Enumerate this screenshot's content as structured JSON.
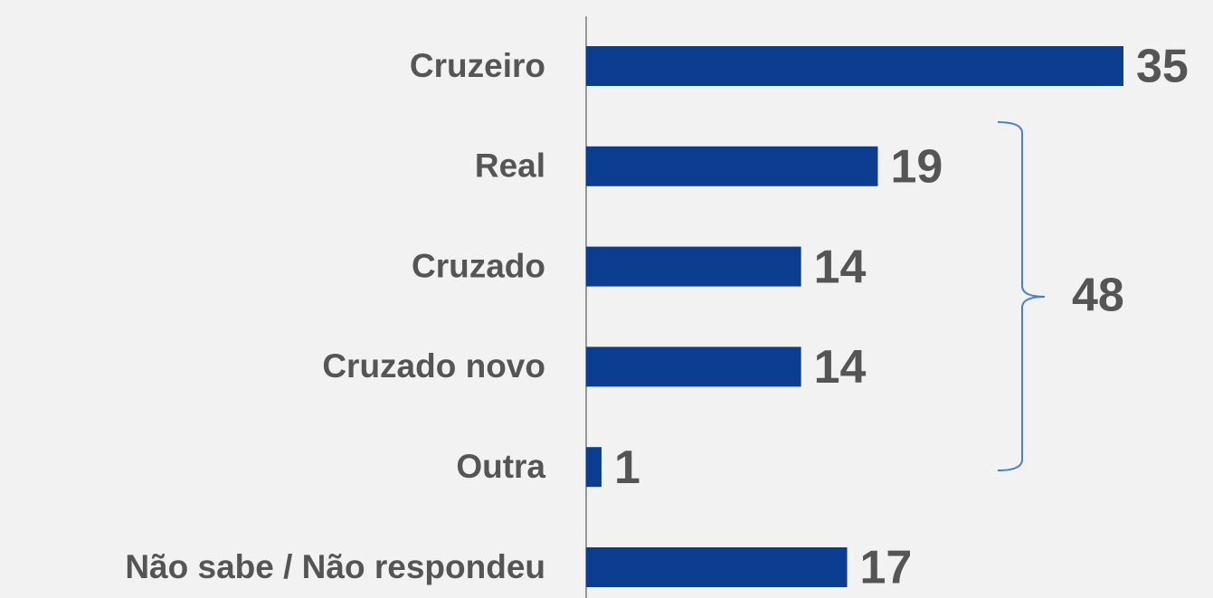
{
  "chart_data": {
    "type": "bar",
    "orientation": "horizontal",
    "categories": [
      "Cruzeiro",
      "Real",
      "Cruzado",
      "Cruzado novo",
      "Outra",
      "Não sabe / Não respondeu"
    ],
    "values": [
      35,
      19,
      14,
      14,
      1,
      17
    ],
    "color": "#0b3d91",
    "bracket_total": 48
  }
}
